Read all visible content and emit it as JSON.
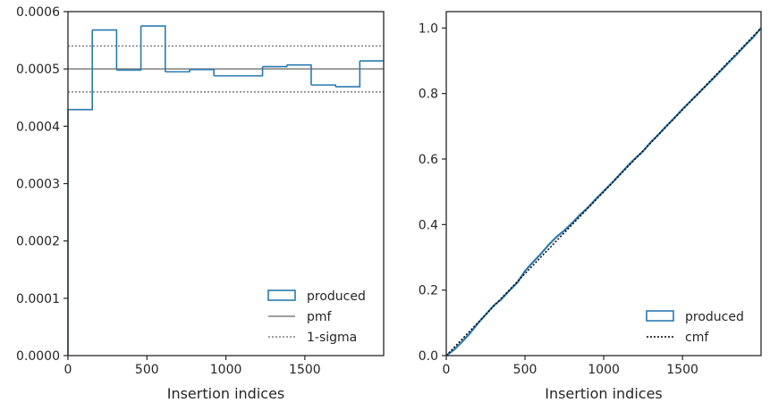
{
  "colors": {
    "produced": "#2a7ab0",
    "pmf": "#7f7f7f",
    "sigma": "#7f7f7f",
    "cmf": "#000000",
    "axes": "#262626"
  },
  "chart_data": [
    {
      "type": "histogram",
      "xlabel": "Insertion indices",
      "ylabel": "",
      "xlim": [
        0,
        1999
      ],
      "ylim": [
        0,
        0.0006
      ],
      "xticks": [
        0,
        500,
        1000,
        1500
      ],
      "xtick_labels": [
        "0",
        "500",
        "1000",
        "1500"
      ],
      "yticks": [
        0,
        0.0001,
        0.0002,
        0.0003,
        0.0004,
        0.0005,
        0.0006
      ],
      "ytick_labels": [
        "0.0000",
        "0.0001",
        "0.0002",
        "0.0003",
        "0.0004",
        "0.0005",
        "0.0006"
      ],
      "grid": false,
      "legend_position": "lower right",
      "legend": [
        "produced",
        "pmf",
        "1-sigma"
      ],
      "bin_edges": [
        0,
        154,
        308,
        462,
        616,
        770,
        924,
        1078,
        1232,
        1386,
        1540,
        1694,
        1848,
        1999
      ],
      "produced": [
        0.000429,
        0.000568,
        0.000498,
        0.000575,
        0.000495,
        0.000499,
        0.000488,
        0.000488,
        0.000504,
        0.000507,
        0.000472,
        0.000469,
        0.000514
      ],
      "pmf": 0.0005,
      "sigma_upper": 0.00054,
      "sigma_lower": 0.00046
    },
    {
      "type": "line",
      "xlabel": "Insertion indices",
      "ylabel": "",
      "xlim": [
        0,
        1999
      ],
      "ylim": [
        0,
        1.05
      ],
      "xticks": [
        0,
        500,
        1000,
        1500
      ],
      "xtick_labels": [
        "0",
        "500",
        "1000",
        "1500"
      ],
      "yticks": [
        0,
        0.2,
        0.4,
        0.6,
        0.8,
        1.0
      ],
      "ytick_labels": [
        "0.0",
        "0.2",
        "0.4",
        "0.6",
        "0.8",
        "1.0"
      ],
      "grid": false,
      "legend_position": "lower right",
      "legend": [
        "produced",
        "cmf"
      ],
      "produced_x": [
        0,
        50,
        100,
        150,
        200,
        250,
        300,
        350,
        400,
        450,
        500,
        550,
        600,
        650,
        700,
        750,
        800,
        850,
        900,
        950,
        1000,
        1050,
        1100,
        1150,
        1200,
        1250,
        1300,
        1350,
        1400,
        1450,
        1500,
        1550,
        1600,
        1650,
        1700,
        1750,
        1800,
        1850,
        1900,
        1950,
        1999
      ],
      "produced_y": [
        0,
        0.018,
        0.042,
        0.068,
        0.098,
        0.125,
        0.152,
        0.172,
        0.198,
        0.222,
        0.258,
        0.285,
        0.31,
        0.338,
        0.362,
        0.382,
        0.405,
        0.43,
        0.452,
        0.478,
        0.502,
        0.526,
        0.552,
        0.578,
        0.602,
        0.624,
        0.652,
        0.676,
        0.702,
        0.726,
        0.752,
        0.776,
        0.8,
        0.824,
        0.848,
        0.873,
        0.898,
        0.922,
        0.948,
        0.972,
        1.0
      ],
      "cmf_x": [
        0,
        1999
      ],
      "cmf_y": [
        0,
        1.0
      ]
    }
  ]
}
